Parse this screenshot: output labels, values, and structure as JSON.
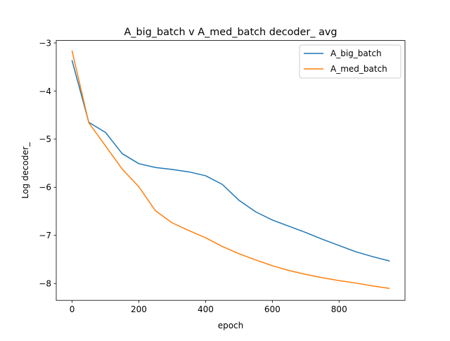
{
  "chart_data": {
    "type": "line",
    "title": "A_big_batch v A_med_batch decoder_ avg",
    "xlabel": "epoch",
    "ylabel": "Log decoder_",
    "xlim": [
      -47.5,
      997.5
    ],
    "ylim": [
      -8.35,
      -2.95
    ],
    "xticks": [
      0,
      200,
      400,
      600,
      800
    ],
    "xtick_labels": [
      "0",
      "200",
      "400",
      "600",
      "800"
    ],
    "yticks": [
      -8,
      -7,
      -6,
      -5,
      -4,
      -3
    ],
    "ytick_labels": [
      "−8",
      "−7",
      "−6",
      "−5",
      "−4",
      "−3"
    ],
    "grid": false,
    "legend_position": "upper right",
    "x": [
      0,
      50,
      100,
      150,
      200,
      250,
      300,
      350,
      400,
      450,
      500,
      550,
      600,
      650,
      700,
      750,
      800,
      850,
      900,
      950
    ],
    "series": [
      {
        "name": "A_big_batch",
        "color": "#1f77b4",
        "values": [
          -3.37,
          -4.65,
          -4.86,
          -5.3,
          -5.51,
          -5.59,
          -5.63,
          -5.68,
          -5.76,
          -5.94,
          -6.27,
          -6.51,
          -6.68,
          -6.81,
          -6.94,
          -7.08,
          -7.21,
          -7.34,
          -7.44,
          -7.53
        ]
      },
      {
        "name": "A_med_batch",
        "color": "#ff7f0e",
        "values": [
          -3.17,
          -4.66,
          -5.14,
          -5.62,
          -5.99,
          -6.49,
          -6.74,
          -6.9,
          -7.05,
          -7.23,
          -7.38,
          -7.51,
          -7.63,
          -7.73,
          -7.81,
          -7.88,
          -7.94,
          -7.99,
          -8.05,
          -8.1
        ]
      }
    ]
  }
}
